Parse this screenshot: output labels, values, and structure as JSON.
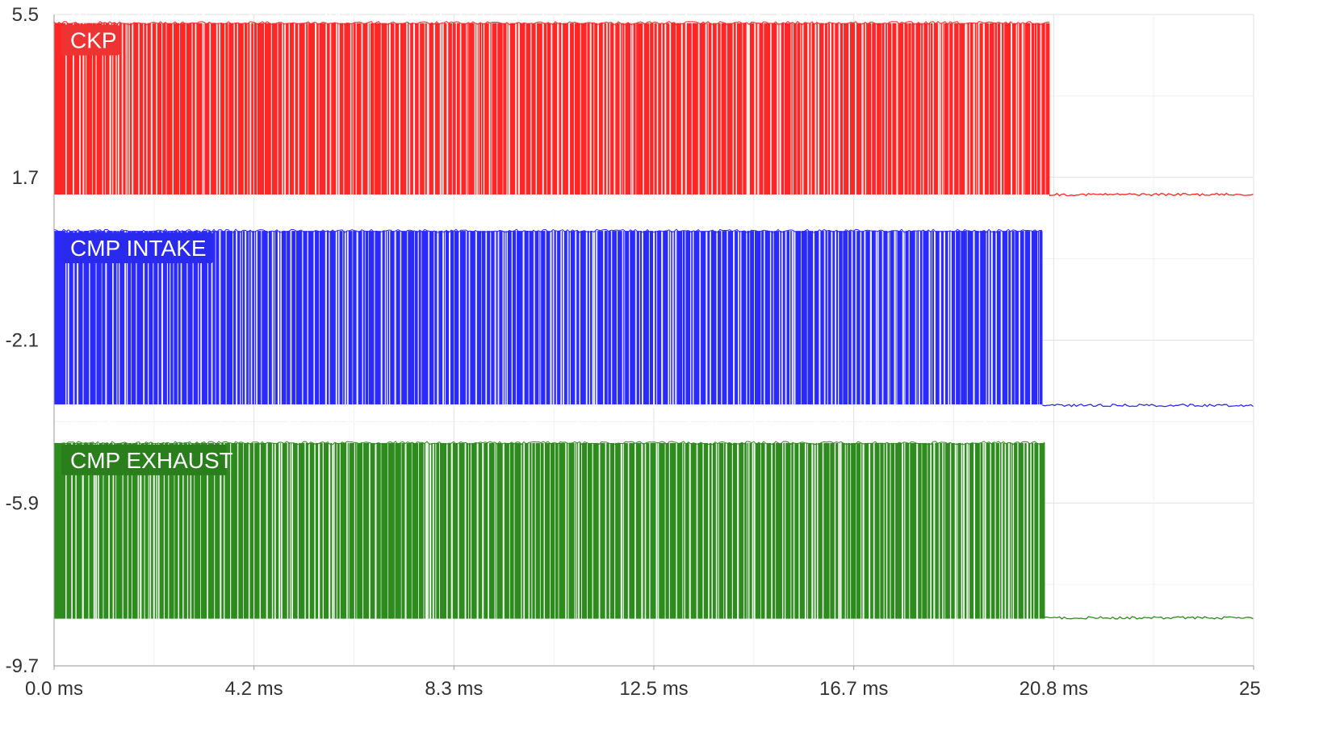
{
  "chart_data": {
    "type": "line",
    "title": "",
    "xlabel": "",
    "ylabel": "",
    "x_unit": "ms",
    "xlim": [
      0,
      25
    ],
    "ylim": [
      -9.7,
      5.5
    ],
    "y_ticks": [
      "5.5",
      "1.7",
      "-2.1",
      "-5.9",
      "-9.7"
    ],
    "x_ticks": [
      "0.0 ms",
      "4.2 ms",
      "8.3 ms",
      "12.5 ms",
      "16.7 ms",
      "20.8 ms",
      "25"
    ],
    "grid": true,
    "legend": "inline labels at top-left of each trace",
    "series": [
      {
        "name": "CKP",
        "color": "#ff2626",
        "label_color": "#ee3333",
        "low_level_v": 1.3,
        "high_level_v": 5.3,
        "switching_from_ms": 0.0,
        "switching_until_ms": 20.75,
        "idle_level_v": 1.3
      },
      {
        "name": "CMP INTAKE",
        "color": "#2a2aff",
        "label_color": "#2a2aee",
        "low_level_v": -3.6,
        "high_level_v": 0.45,
        "switching_from_ms": 0.0,
        "switching_until_ms": 20.6,
        "idle_level_v": -3.62
      },
      {
        "name": "CMP EXHAUST",
        "color": "#2e8b1e",
        "label_color": "#2a7f1c",
        "low_level_v": -8.6,
        "high_level_v": -4.5,
        "switching_from_ms": 0.0,
        "switching_until_ms": 20.65,
        "idle_level_v": -8.58
      }
    ]
  }
}
